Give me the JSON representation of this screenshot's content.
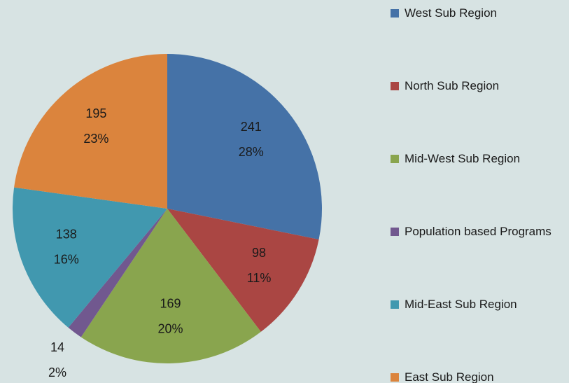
{
  "chart_data": {
    "type": "pie",
    "categories": [
      "West Sub Region",
      "North Sub Region",
      "Mid-West Sub Region",
      "Population based Programs",
      "Mid-East Sub Region",
      "East Sub Region"
    ],
    "values": [
      241,
      98,
      169,
      14,
      138,
      195
    ],
    "percent_labels": [
      "28%",
      "11%",
      "20%",
      "2%",
      "16%",
      "23%"
    ],
    "colors": [
      "#4572a7",
      "#aa4643",
      "#89a54e",
      "#71588f",
      "#4198af",
      "#db843d"
    ],
    "legend": "right"
  }
}
